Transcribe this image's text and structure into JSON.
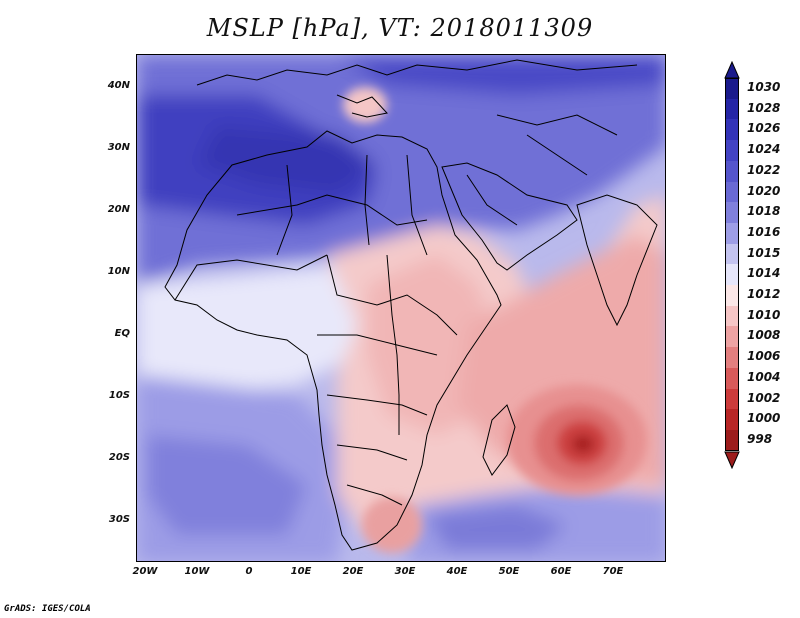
{
  "title": "MSLP [hPa], VT: 2018011309",
  "credit": "GrADS: IGES/COLA",
  "lat_labels": [
    "40N",
    "30N",
    "20N",
    "10N",
    "EQ",
    "10S",
    "20S",
    "30S"
  ],
  "lon_labels": [
    "20W",
    "10W",
    "0",
    "10E",
    "20E",
    "30E",
    "40E",
    "50E",
    "60E",
    "70E"
  ],
  "colorbar": {
    "levels": [
      "1030",
      "1028",
      "1026",
      "1024",
      "1022",
      "1020",
      "1018",
      "1016",
      "1015",
      "1014",
      "1012",
      "1010",
      "1008",
      "1006",
      "1004",
      "1002",
      "1000",
      "998"
    ],
    "colors": [
      "#1a1a8c",
      "#2525a6",
      "#3333b8",
      "#4343c4",
      "#5555cc",
      "#6969d4",
      "#8080dc",
      "#9e9ee6",
      "#c4c4f0",
      "#e6e6fa",
      "#fbe7e7",
      "#f6c6c6",
      "#eea3a3",
      "#e37f7f",
      "#d85a5a",
      "#cc3b3b",
      "#b82626",
      "#9c1c1c"
    ]
  }
}
